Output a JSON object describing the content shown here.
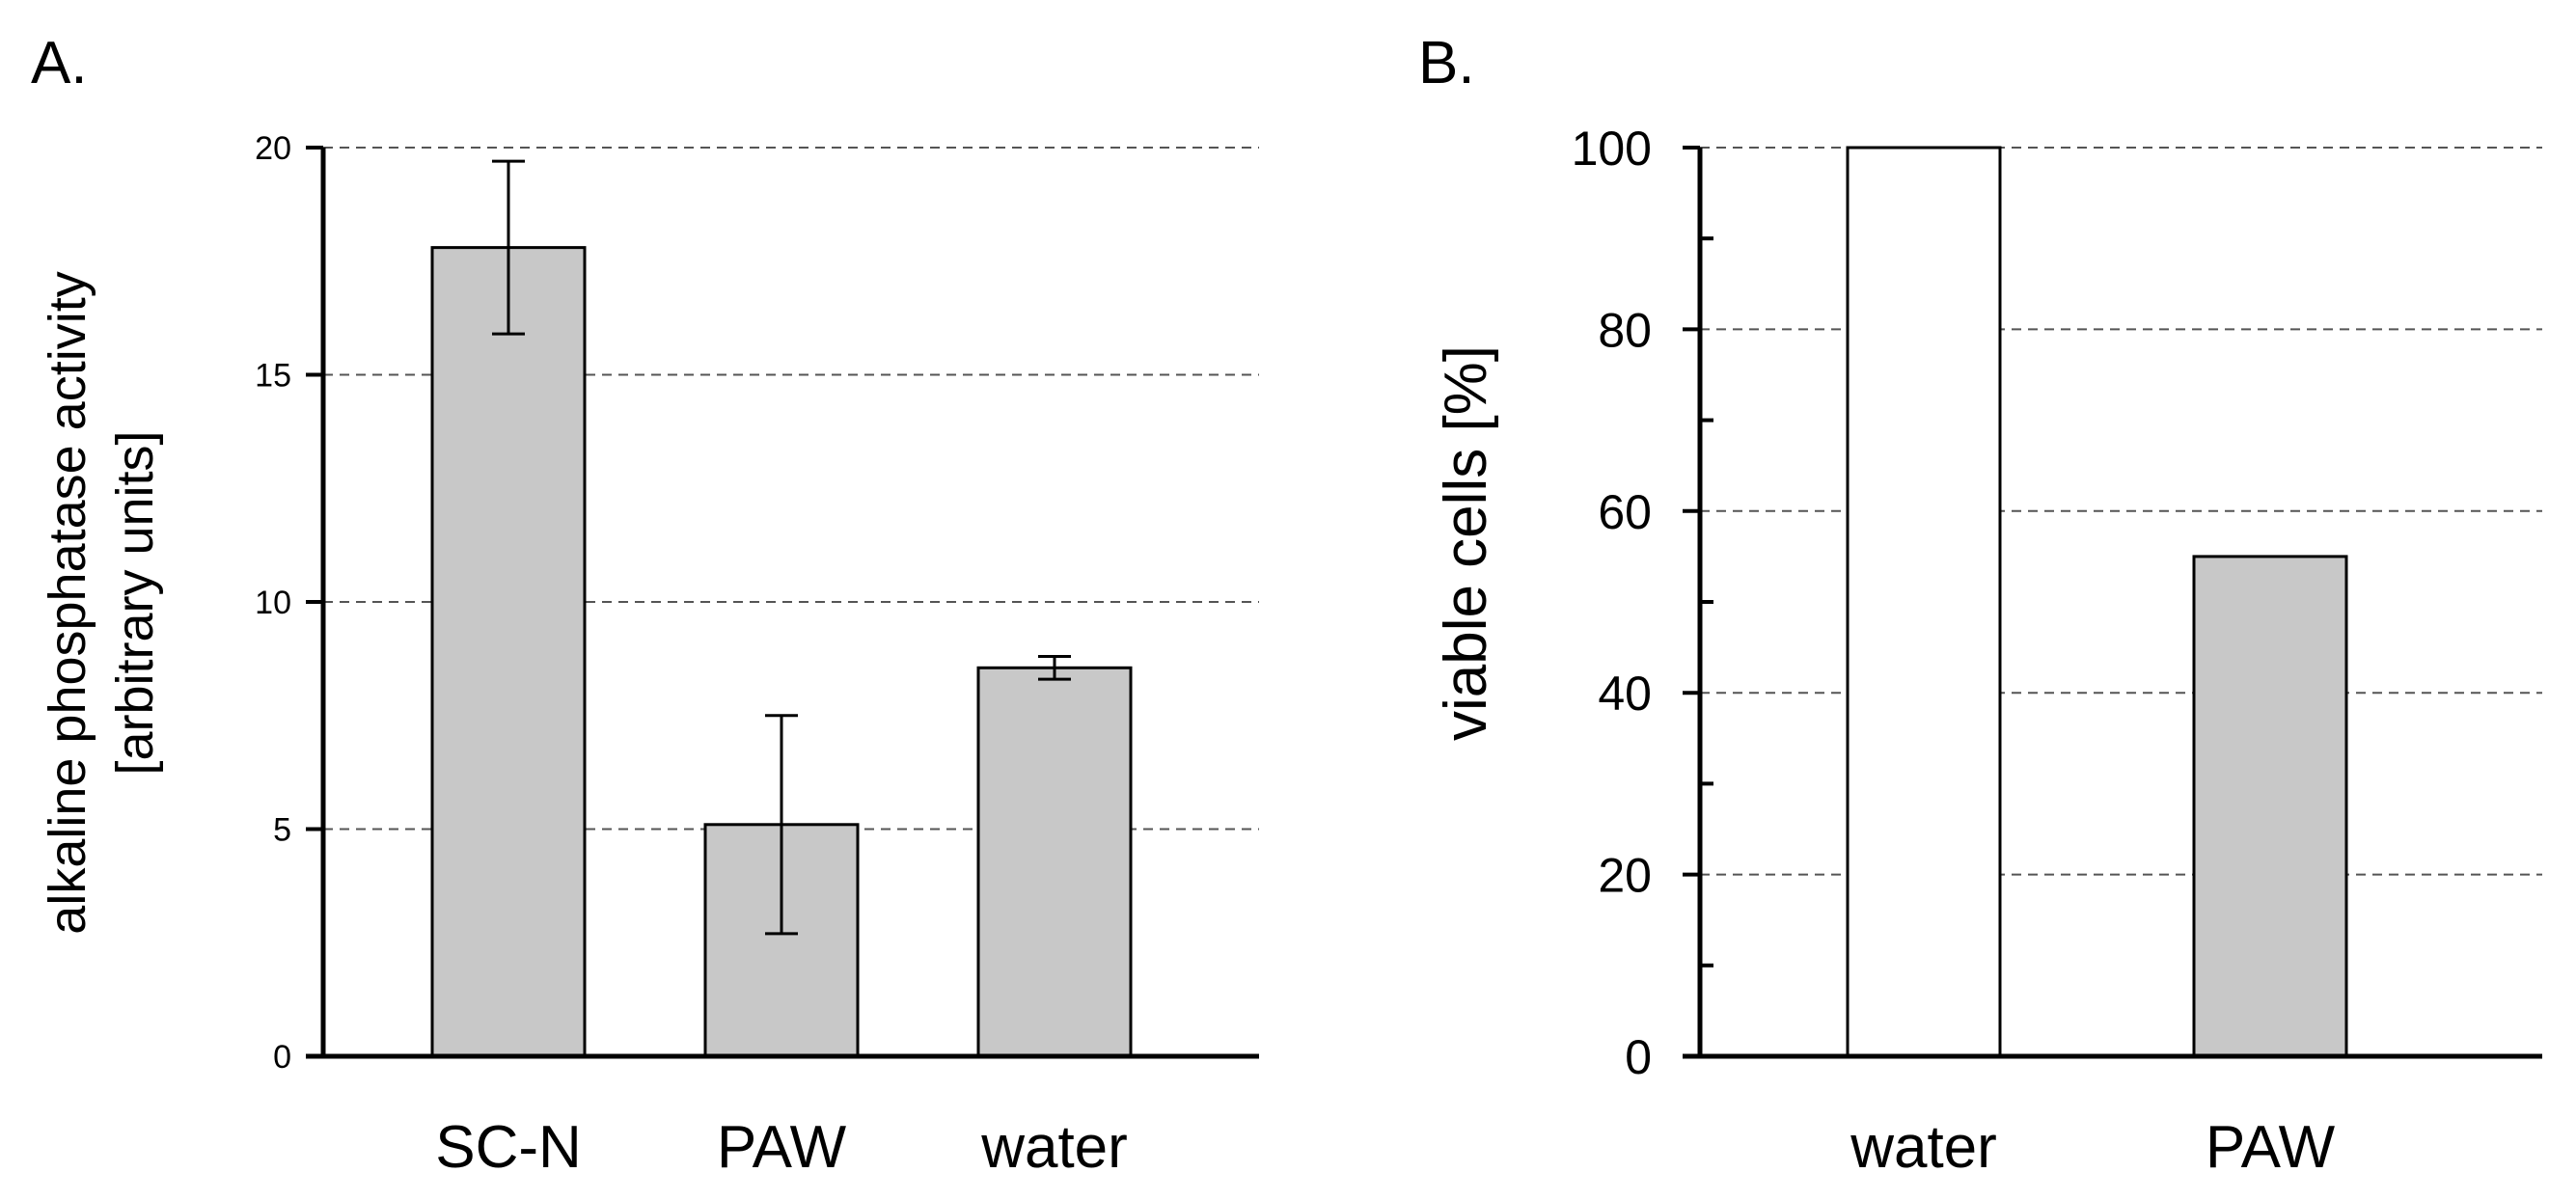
{
  "chart_data": [
    {
      "panel": "A.",
      "type": "bar",
      "title": "",
      "categories": [
        "SC-N",
        "PAW",
        "water"
      ],
      "values": [
        17.8,
        5.1,
        8.55
      ],
      "error_low": [
        15.9,
        2.7,
        8.3
      ],
      "error_high": [
        19.7,
        7.5,
        8.8
      ],
      "bar_colors": [
        "#c8c8c8",
        "#c8c8c8",
        "#c8c8c8"
      ],
      "ylabel_lines": [
        "alkaline phosphatase activity",
        "[arbitrary units]"
      ],
      "xlabel": "",
      "ylim": [
        0,
        20
      ],
      "yticks": [
        0,
        5,
        10,
        15,
        20
      ],
      "minor_step": 0,
      "grid": true
    },
    {
      "panel": "B.",
      "type": "bar",
      "title": "",
      "categories": [
        "water",
        "PAW"
      ],
      "values": [
        100,
        55
      ],
      "bar_colors": [
        "#ffffff",
        "#c8c8c8"
      ],
      "ylabel_lines": [
        "viable cells [%]"
      ],
      "xlabel": "",
      "ylim": [
        0,
        100
      ],
      "yticks": [
        0,
        20,
        40,
        60,
        80,
        100
      ],
      "minor_step": 10,
      "grid": true
    }
  ]
}
